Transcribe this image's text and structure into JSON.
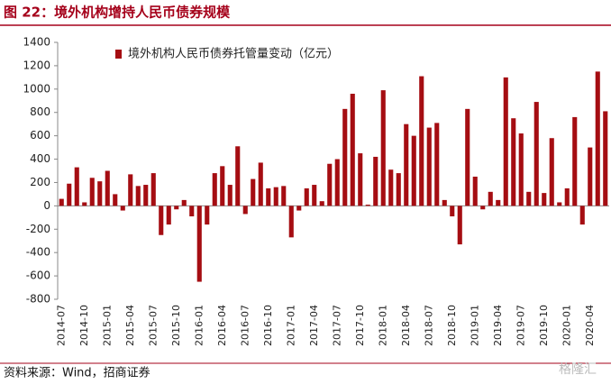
{
  "chart_data": {
    "type": "bar",
    "title": "图 22：境外机构增持人民币债券规模",
    "source": "资料来源：Wind，招商证券",
    "watermark": "格隆汇",
    "categories": [
      "2014-07",
      null,
      null,
      "2014-10",
      null,
      null,
      "2015-01",
      null,
      null,
      "2015-04",
      null,
      null,
      "2015-07",
      null,
      null,
      "2015-10",
      null,
      null,
      "2016-01",
      null,
      null,
      "2016-04",
      null,
      null,
      "2016-07",
      null,
      null,
      "2016-10",
      null,
      null,
      "2017-01",
      null,
      null,
      "2017-04",
      null,
      null,
      "2017-07",
      null,
      null,
      "2017-10",
      null,
      null,
      "2018-01",
      null,
      null,
      "2018-04",
      null,
      null,
      "2018-07",
      null,
      null,
      "2018-10",
      null,
      null,
      "2019-01",
      null,
      null,
      "2019-04",
      null,
      null,
      "2019-07",
      null,
      null,
      "2019-10",
      null,
      null,
      "2020-01",
      null,
      null,
      "2020-04",
      null,
      null
    ],
    "series": [
      {
        "name": "境外机构人民币债券托管量变动（亿元）",
        "color": "#a50d12",
        "values": [
          60,
          190,
          330,
          30,
          240,
          210,
          300,
          100,
          -40,
          270,
          170,
          180,
          280,
          -250,
          -160,
          -30,
          50,
          -90,
          -650,
          -160,
          280,
          340,
          180,
          510,
          -70,
          230,
          370,
          150,
          160,
          170,
          -270,
          -40,
          150,
          180,
          40,
          360,
          400,
          830,
          960,
          450,
          10,
          420,
          990,
          310,
          280,
          700,
          600,
          1110,
          670,
          710,
          50,
          -90,
          -330,
          830,
          250,
          -30,
          120,
          50,
          1100,
          750,
          620,
          120,
          890,
          110,
          580,
          30,
          150,
          760,
          -160,
          500,
          1150,
          810
        ]
      }
    ],
    "ylim": [
      -800,
      1400
    ],
    "yticks": [
      -800,
      -600,
      -400,
      -200,
      0,
      200,
      400,
      600,
      800,
      1000,
      1200,
      1400
    ],
    "legend": "top-left"
  }
}
